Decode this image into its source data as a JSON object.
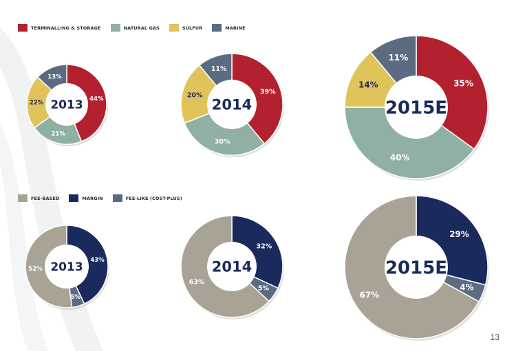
{
  "legends": {
    "segment": [
      {
        "label": "TERMINALLING & STORAGE",
        "color": "#b3212f"
      },
      {
        "label": "NATURAL GAS",
        "color": "#8fb0a3"
      },
      {
        "label": "SULFUR",
        "color": "#e0c35a"
      },
      {
        "label": "MARINE",
        "color": "#5a6b82"
      }
    ],
    "contract": [
      {
        "label": "FEE-BASED",
        "color": "#a8a394"
      },
      {
        "label": "MARGIN",
        "color": "#1b2a5c"
      },
      {
        "label": "FEE-LIKE (COST-PLUS)",
        "color": "#5a6b82"
      }
    ]
  },
  "chart_data": [
    {
      "type": "pie",
      "title": "2013",
      "categories": [
        "TERMINALLING & STORAGE",
        "NATURAL GAS",
        "SULFUR",
        "MARINE"
      ],
      "values": [
        44,
        21,
        22,
        13
      ],
      "labels": [
        "44%",
        "21%",
        "22%",
        "13%"
      ],
      "colors": [
        "#b3212f",
        "#8fb0a3",
        "#e0c35a",
        "#5a6b82"
      ]
    },
    {
      "type": "pie",
      "title": "2014",
      "categories": [
        "TERMINALLING & STORAGE",
        "NATURAL GAS",
        "SULFUR",
        "MARINE"
      ],
      "values": [
        39,
        30,
        20,
        11
      ],
      "labels": [
        "39%",
        "30%",
        "20%",
        "11%"
      ],
      "colors": [
        "#b3212f",
        "#8fb0a3",
        "#e0c35a",
        "#5a6b82"
      ]
    },
    {
      "type": "pie",
      "title": "2015E",
      "categories": [
        "TERMINALLING & STORAGE",
        "NATURAL GAS",
        "SULFUR",
        "MARINE"
      ],
      "values": [
        35,
        40,
        14,
        11
      ],
      "labels": [
        "35%",
        "40%",
        "14%",
        "11%"
      ],
      "colors": [
        "#b3212f",
        "#8fb0a3",
        "#e0c35a",
        "#5a6b82"
      ]
    },
    {
      "type": "pie",
      "title": "2013",
      "categories": [
        "MARGIN",
        "FEE-LIKE (COST-PLUS)",
        "FEE-BASED"
      ],
      "values": [
        43,
        5,
        52
      ],
      "labels": [
        "43%",
        "5%",
        "52%"
      ],
      "colors": [
        "#1b2a5c",
        "#5a6b82",
        "#a8a394"
      ]
    },
    {
      "type": "pie",
      "title": "2014",
      "categories": [
        "MARGIN",
        "FEE-LIKE (COST-PLUS)",
        "FEE-BASED"
      ],
      "values": [
        32,
        5,
        63
      ],
      "labels": [
        "32%",
        "5%",
        "63%"
      ],
      "colors": [
        "#1b2a5c",
        "#5a6b82",
        "#a8a394"
      ]
    },
    {
      "type": "pie",
      "title": "2015E",
      "categories": [
        "MARGIN",
        "FEE-LIKE (COST-PLUS)",
        "FEE-BASED"
      ],
      "values": [
        29,
        4,
        67
      ],
      "labels": [
        "29%",
        "4%",
        "67%"
      ],
      "colors": [
        "#1b2a5c",
        "#5a6b82",
        "#a8a394"
      ]
    }
  ],
  "page_number": "13"
}
